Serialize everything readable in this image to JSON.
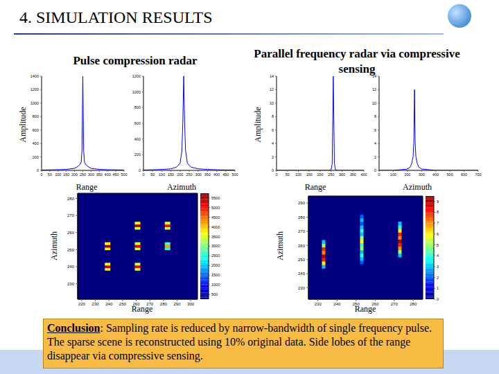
{
  "slide": {
    "title": "4. SIMULATION RESULTS",
    "columns": [
      "Pulse compression radar",
      "Parallel frequency radar via compressive sensing"
    ],
    "conclusion": {
      "label": "Conclusion",
      "text": ": Sampling rate is reduced by narrow-bandwidth of single frequency pulse. The sparse scene is reconstructed using 10% original data. Side lobes of the range disappear via compressive sensing."
    }
  },
  "chart_data": [
    {
      "type": "line",
      "xlabel": "Range",
      "ylabel": "Amplitude",
      "x": [
        0,
        50,
        100,
        150,
        200,
        220,
        230,
        240,
        245,
        250,
        255,
        260,
        270,
        280,
        300,
        350,
        400,
        450,
        500
      ],
      "values": [
        5,
        8,
        10,
        15,
        30,
        60,
        80,
        120,
        300,
        1400,
        300,
        120,
        80,
        60,
        30,
        15,
        10,
        8,
        5
      ],
      "xlim": [
        0,
        500
      ],
      "xticks": [
        0,
        50,
        100,
        150,
        200,
        250,
        300,
        350,
        400,
        450,
        500
      ],
      "ylim": [
        0,
        1400
      ],
      "yticks": [
        0,
        200,
        400,
        600,
        800,
        1000,
        1200,
        1400
      ],
      "color": "#0000ff"
    },
    {
      "type": "line",
      "xlabel": "Azimuth",
      "x": [
        0,
        50,
        100,
        150,
        180,
        200,
        210,
        215,
        220,
        225,
        230,
        240,
        260,
        300,
        350,
        400,
        450,
        500
      ],
      "values": [
        5,
        8,
        12,
        20,
        40,
        90,
        250,
        600,
        1200,
        600,
        250,
        90,
        40,
        20,
        12,
        8,
        5,
        5
      ],
      "xlim": [
        0,
        500
      ],
      "xticks": [
        0,
        50,
        100,
        150,
        200,
        250,
        300,
        350,
        400,
        450,
        500
      ],
      "ylim": [
        0,
        1200
      ],
      "yticks": [
        0,
        200,
        400,
        600,
        800,
        1000,
        1200
      ],
      "color": "#0000ff"
    },
    {
      "type": "line",
      "xlabel": "Range",
      "ylabel": "Amplitude",
      "x": [
        0,
        50,
        100,
        150,
        200,
        240,
        250,
        255,
        260,
        265,
        270,
        280,
        320,
        350,
        400
      ],
      "values": [
        0,
        0,
        0,
        0,
        0,
        0,
        0.1,
        1,
        14,
        1,
        0.1,
        0,
        0,
        0,
        0
      ],
      "xlim": [
        0,
        400
      ],
      "xticks": [
        0,
        50,
        100,
        150,
        200,
        250,
        300,
        350,
        400
      ],
      "ylim": [
        0,
        14
      ],
      "yticks": [
        0,
        2,
        4,
        6,
        8,
        10,
        12,
        14
      ],
      "color": "#0000ff"
    },
    {
      "type": "line",
      "xlabel": "Azimuth",
      "x": [
        0,
        100,
        200,
        220,
        230,
        240,
        245,
        250,
        255,
        260,
        270,
        280,
        300,
        400,
        500,
        600,
        700
      ],
      "values": [
        0,
        0,
        0.2,
        0.5,
        1,
        2,
        4,
        12,
        4,
        2,
        1,
        0.5,
        0.2,
        0,
        0,
        0,
        0
      ],
      "xlim": [
        0,
        700
      ],
      "xticks": [
        0,
        100,
        200,
        300,
        400,
        500,
        600,
        700
      ],
      "ylim": [
        0,
        14
      ],
      "yticks": [
        0,
        2,
        4,
        6,
        8,
        10,
        12,
        14
      ],
      "color": "#0000ff"
    },
    {
      "type": "heatmap",
      "xlabel": "Range",
      "ylabel": "Azimuth",
      "xlim": [
        217,
        305
      ],
      "xticks": [
        220,
        230,
        240,
        250,
        260,
        270,
        280,
        290,
        300
      ],
      "ylim": [
        221,
        283
      ],
      "yticks": [
        230,
        240,
        250,
        260,
        270,
        280
      ],
      "cells": [
        {
          "x": 261,
          "y": 262.5,
          "value": 3500
        },
        {
          "x": 261,
          "y": 264,
          "value": 5400
        },
        {
          "x": 261,
          "y": 265.5,
          "value": 3600
        },
        {
          "x": 283,
          "y": 262.5,
          "value": 3300
        },
        {
          "x": 283,
          "y": 264,
          "value": 5000
        },
        {
          "x": 283,
          "y": 265.5,
          "value": 3400
        },
        {
          "x": 239,
          "y": 250.5,
          "value": 3600
        },
        {
          "x": 239,
          "y": 252,
          "value": 5500
        },
        {
          "x": 239,
          "y": 253.5,
          "value": 3700
        },
        {
          "x": 261,
          "y": 250.5,
          "value": 3400
        },
        {
          "x": 261,
          "y": 252,
          "value": 5200
        },
        {
          "x": 261,
          "y": 253.5,
          "value": 3500
        },
        {
          "x": 283,
          "y": 250.5,
          "value": 2500
        },
        {
          "x": 283,
          "y": 252,
          "value": 4200
        },
        {
          "x": 283,
          "y": 253.5,
          "value": 2600
        },
        {
          "x": 239,
          "y": 238.5,
          "value": 3500
        },
        {
          "x": 239,
          "y": 240,
          "value": 5300
        },
        {
          "x": 239,
          "y": 241.5,
          "value": 3600
        },
        {
          "x": 261,
          "y": 238.5,
          "value": 3300
        },
        {
          "x": 261,
          "y": 240,
          "value": 5100
        },
        {
          "x": 261,
          "y": 241.5,
          "value": 3400
        }
      ],
      "colorbar": {
        "range": [
          250,
          5750
        ],
        "ticks": [
          500,
          1000,
          1500,
          2000,
          2500,
          3000,
          3500,
          4000,
          4500,
          5000,
          5500
        ]
      }
    },
    {
      "type": "heatmap",
      "xlabel": "Range",
      "ylabel": "Azimuth",
      "xlim": [
        225,
        285
      ],
      "xticks": [
        230,
        240,
        250,
        260,
        270,
        280
      ],
      "ylim": [
        222,
        295
      ],
      "yticks": [
        230,
        240,
        250,
        260,
        270,
        280,
        290
      ],
      "cells": [
        {
          "x": 233,
          "y": 245,
          "value": 3
        },
        {
          "x": 233,
          "y": 247.5,
          "value": 6
        },
        {
          "x": 233,
          "y": 250,
          "value": 8
        },
        {
          "x": 233,
          "y": 252.5,
          "value": 9
        },
        {
          "x": 233,
          "y": 255,
          "value": 7
        },
        {
          "x": 233,
          "y": 257.5,
          "value": 8
        },
        {
          "x": 233,
          "y": 260,
          "value": 5
        },
        {
          "x": 233,
          "y": 262.5,
          "value": 3
        },
        {
          "x": 253,
          "y": 248,
          "value": 2
        },
        {
          "x": 253,
          "y": 250.5,
          "value": 3
        },
        {
          "x": 253,
          "y": 253,
          "value": 4
        },
        {
          "x": 253,
          "y": 255.5,
          "value": 3
        },
        {
          "x": 253,
          "y": 258,
          "value": 5
        },
        {
          "x": 253,
          "y": 260.5,
          "value": 4
        },
        {
          "x": 253,
          "y": 263,
          "value": 6
        },
        {
          "x": 253,
          "y": 265.5,
          "value": 5
        },
        {
          "x": 253,
          "y": 268,
          "value": 3
        },
        {
          "x": 253,
          "y": 270.5,
          "value": 4
        },
        {
          "x": 253,
          "y": 273,
          "value": 3
        },
        {
          "x": 253,
          "y": 275.5,
          "value": 2
        },
        {
          "x": 253,
          "y": 278,
          "value": 3
        },
        {
          "x": 253,
          "y": 280.5,
          "value": 2
        },
        {
          "x": 273,
          "y": 253,
          "value": 3
        },
        {
          "x": 273,
          "y": 255.5,
          "value": 5
        },
        {
          "x": 273,
          "y": 258,
          "value": 7
        },
        {
          "x": 273,
          "y": 260.5,
          "value": 8
        },
        {
          "x": 273,
          "y": 263,
          "value": 9
        },
        {
          "x": 273,
          "y": 265.5,
          "value": 7
        },
        {
          "x": 273,
          "y": 268,
          "value": 8
        },
        {
          "x": 273,
          "y": 270.5,
          "value": 6
        },
        {
          "x": 273,
          "y": 273,
          "value": 4
        },
        {
          "x": 273,
          "y": 275.5,
          "value": 3
        }
      ],
      "colorbar": {
        "range": [
          0,
          9.5
        ],
        "ticks": [
          0,
          1,
          2,
          3,
          4,
          5,
          6,
          7,
          8,
          9
        ]
      }
    }
  ]
}
